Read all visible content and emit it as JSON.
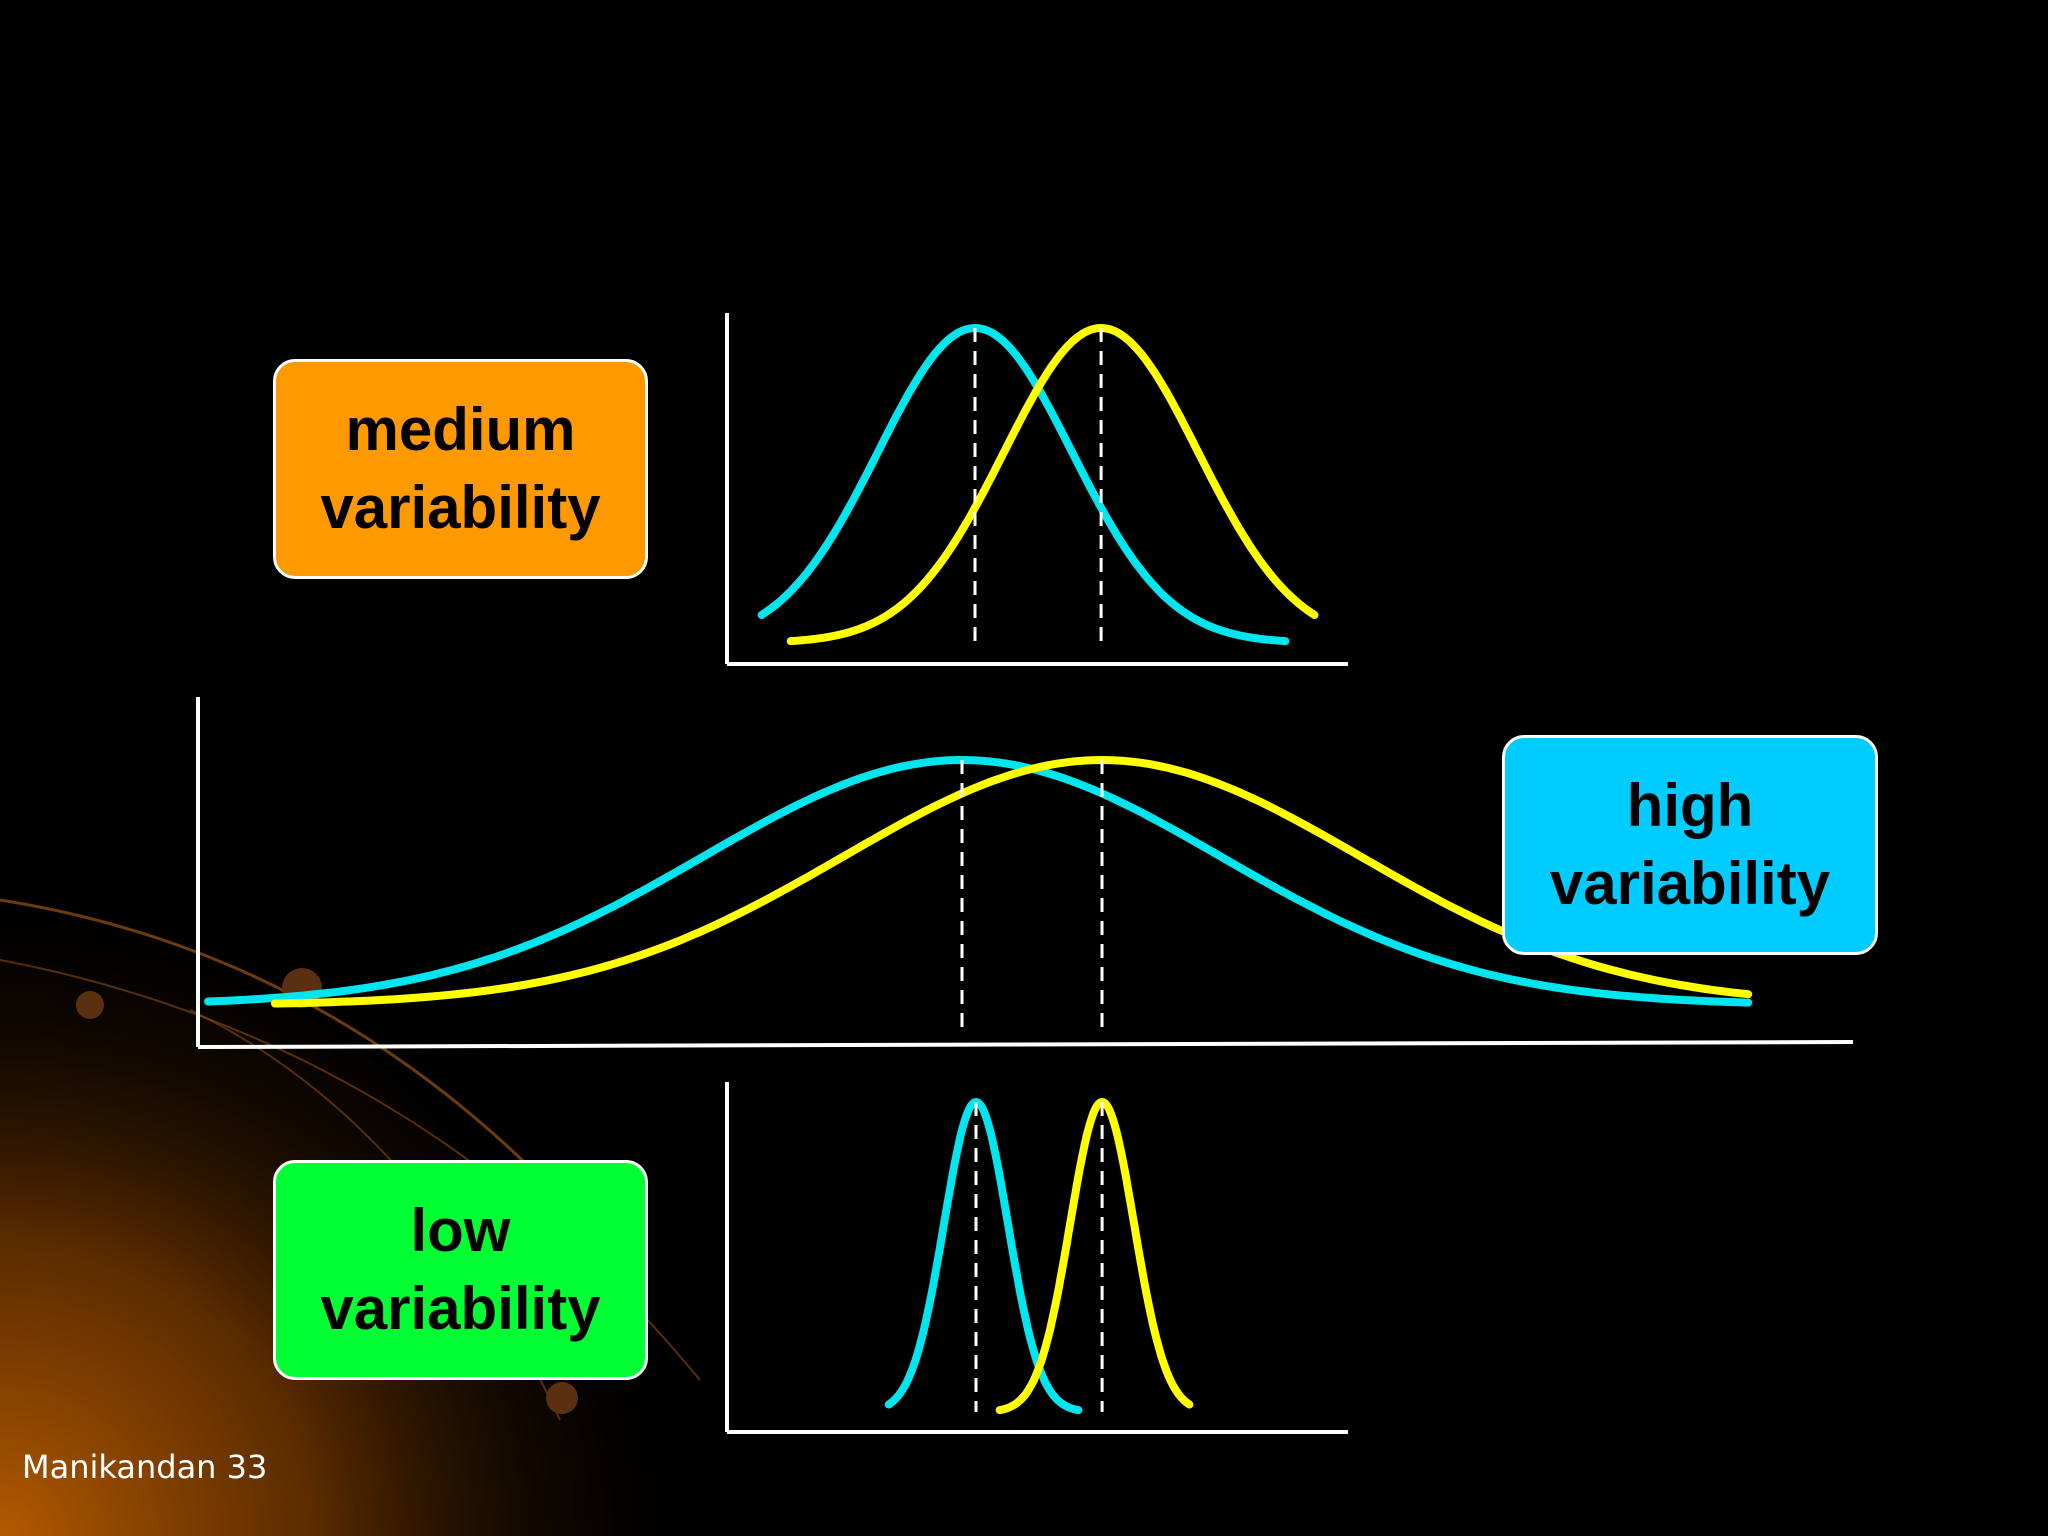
{
  "labels": {
    "medium": {
      "line1": "medium",
      "line2": "variability",
      "color": "#ff9900"
    },
    "high": {
      "line1": "high",
      "line2": "variability",
      "color": "#00ccff"
    },
    "low": {
      "line1": "low",
      "line2": "variability",
      "color": "#00ff33"
    }
  },
  "footer": {
    "text": "Manikandan 33"
  },
  "colors": {
    "background": "#000000",
    "curve_a": "#00e5ee",
    "curve_b": "#ffff00",
    "axis": "#ffffff",
    "decor_glow": "#b35a00"
  },
  "chart_data": [
    {
      "type": "line",
      "panel": "medium",
      "series": [
        {
          "mean": 0,
          "sd": 1,
          "color": "cyan"
        },
        {
          "mean": 1.3,
          "sd": 1,
          "color": "yellow"
        }
      ],
      "mean_markers": [
        0,
        1.3
      ],
      "x_range": [
        -2.2,
        3.5
      ]
    },
    {
      "type": "line",
      "panel": "high",
      "series": [
        {
          "mean": 0,
          "sd": 2.4,
          "color": "cyan"
        },
        {
          "mean": 1.3,
          "sd": 2.4,
          "color": "yellow"
        }
      ],
      "mean_markers": [
        0,
        1.3
      ],
      "x_range": [
        -7,
        7.3
      ]
    },
    {
      "type": "line",
      "panel": "low",
      "series": [
        {
          "mean": 0,
          "sd": 0.33,
          "color": "cyan"
        },
        {
          "mean": 1.3,
          "sd": 0.33,
          "color": "yellow"
        }
      ],
      "mean_markers": [
        0,
        1.3
      ],
      "x_range": [
        -0.9,
        2.2
      ]
    }
  ]
}
